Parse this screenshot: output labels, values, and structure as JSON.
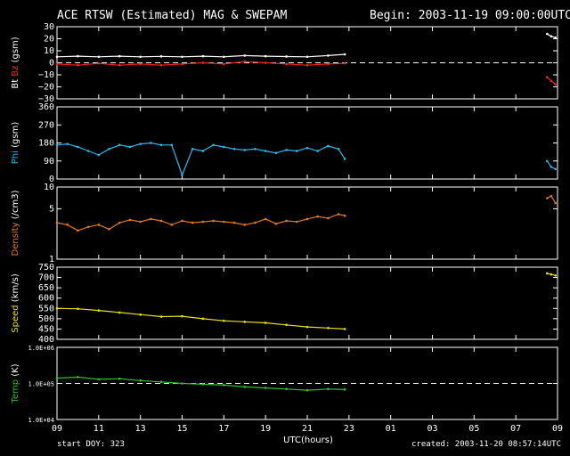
{
  "header": {
    "title": "ACE RTSW (Estimated) MAG & SWEPAM",
    "begin": "Begin: 2003-11-19 09:00:00UTC"
  },
  "footer": {
    "start_doy": "start DOY: 323",
    "created": "created: 2003-11-20 08:57:14UTC"
  },
  "colors": {
    "bt": "#ffffff",
    "bz": "#ff2020",
    "phi": "#30b8e8",
    "density": "#e07820",
    "speed": "#e8e020",
    "temp": "#30c030",
    "axes": "#ffffff"
  },
  "chart_data": [
    {
      "type": "scatter",
      "ylabel": [
        {
          "text": "Bt",
          "color": "#ffffff"
        },
        {
          "text": "Bz",
          "color": "#ff2020"
        },
        {
          "text": "(gsm)",
          "color": "#ffffff"
        }
      ],
      "ylim": [
        -30,
        30
      ],
      "yticks": [
        "30",
        "20",
        "10",
        "0",
        "−10",
        "−20",
        "−30"
      ],
      "ytick_values": [
        30,
        20,
        10,
        0,
        -10,
        -20,
        -30
      ],
      "reference_line": 0,
      "series": [
        {
          "key": "bt",
          "x": [
            0,
            1,
            2,
            3,
            4,
            5,
            6,
            7,
            8,
            9,
            10,
            11,
            12,
            13,
            13.8,
            23.5,
            23.7,
            23.9
          ],
          "values": [
            5,
            5.5,
            5,
            5.5,
            5,
            5.3,
            5,
            5.5,
            5,
            6,
            5.5,
            5.2,
            5,
            6,
            7,
            24,
            22,
            21
          ]
        },
        {
          "key": "bz",
          "x": [
            0,
            1,
            2,
            3,
            4,
            5,
            6,
            7,
            8,
            9,
            10,
            11,
            12,
            13,
            13.8,
            23.5,
            23.7,
            23.9
          ],
          "values": [
            -1,
            -2,
            -0.5,
            -2,
            -1,
            -2,
            -1,
            0,
            -1,
            1,
            0,
            -1,
            -2,
            -1,
            -0.5,
            -12,
            -15,
            -18
          ]
        }
      ]
    },
    {
      "type": "scatter",
      "ylabel": [
        {
          "text": "Phi",
          "color": "#30b8e8"
        },
        {
          "text": "(gsm)",
          "color": "#ffffff"
        }
      ],
      "ylim": [
        0,
        360
      ],
      "yticks": [
        "360",
        "270",
        "180",
        "90",
        "0"
      ],
      "ytick_values": [
        360,
        270,
        180,
        90,
        0
      ],
      "series": [
        {
          "key": "phi",
          "x": [
            0,
            0.5,
            1,
            1.5,
            2,
            2.5,
            3,
            3.5,
            4,
            4.5,
            5,
            5.5,
            6,
            6.5,
            7,
            7.5,
            8,
            8.5,
            9,
            9.5,
            10,
            10.5,
            11,
            11.5,
            12,
            12.5,
            13,
            13.5,
            13.8,
            23.5,
            23.7,
            23.9
          ],
          "values": [
            170,
            175,
            160,
            140,
            120,
            150,
            170,
            160,
            175,
            180,
            170,
            170,
            20,
            150,
            140,
            170,
            160,
            150,
            145,
            150,
            140,
            130,
            145,
            140,
            155,
            140,
            165,
            150,
            100,
            90,
            60,
            50
          ]
        }
      ]
    },
    {
      "type": "scatter",
      "ylabel": [
        {
          "text": "Density",
          "color": "#e07820"
        },
        {
          "text": "(/cm3)",
          "color": "#ffffff"
        }
      ],
      "scale": "log",
      "ylim": [
        1,
        10
      ],
      "yticks": [
        "10",
        "5",
        "1"
      ],
      "ytick_values": [
        10,
        5,
        1
      ],
      "series": [
        {
          "key": "density",
          "x": [
            0,
            0.5,
            1,
            1.5,
            2,
            2.5,
            3,
            3.5,
            4,
            4.5,
            5,
            5.5,
            6,
            6.5,
            7,
            7.5,
            8,
            8.5,
            9,
            9.5,
            10,
            10.5,
            11,
            11.5,
            12,
            12.5,
            13,
            13.5,
            13.8,
            23.5,
            23.7,
            23.9
          ],
          "values": [
            3.2,
            3.0,
            2.5,
            2.8,
            3.0,
            2.6,
            3.2,
            3.5,
            3.3,
            3.6,
            3.4,
            3.0,
            3.4,
            3.2,
            3.3,
            3.4,
            3.3,
            3.2,
            3.0,
            3.2,
            3.6,
            3.1,
            3.4,
            3.3,
            3.6,
            3.9,
            3.7,
            4.2,
            4.0,
            7.0,
            7.5,
            6.0
          ]
        }
      ]
    },
    {
      "type": "line",
      "ylabel": [
        {
          "text": "Speed",
          "color": "#e8e020"
        },
        {
          "text": "(km/s)",
          "color": "#ffffff"
        }
      ],
      "ylim": [
        400,
        750
      ],
      "yticks": [
        "750",
        "700",
        "650",
        "600",
        "550",
        "500",
        "450",
        "400"
      ],
      "ytick_values": [
        750,
        700,
        650,
        600,
        550,
        500,
        450,
        400
      ],
      "series": [
        {
          "key": "speed",
          "x": [
            0,
            1,
            2,
            3,
            4,
            5,
            6,
            7,
            8,
            9,
            10,
            11,
            12,
            13,
            13.8,
            23.5,
            23.7,
            23.9
          ],
          "values": [
            550,
            548,
            540,
            530,
            520,
            510,
            512,
            500,
            490,
            485,
            480,
            470,
            460,
            455,
            450,
            720,
            715,
            710
          ]
        }
      ]
    },
    {
      "type": "scatter",
      "ylabel": [
        {
          "text": "Temp",
          "color": "#30c030"
        },
        {
          "text": "(K)",
          "color": "#ffffff"
        }
      ],
      "scale": "log",
      "ylim": [
        10000,
        1000000
      ],
      "yticks": [
        "1.0E+06",
        "1.0E+05",
        "1.0E+04"
      ],
      "ytick_values": [
        1000000,
        100000,
        10000
      ],
      "reference_line": 100000,
      "series": [
        {
          "key": "temp",
          "x": [
            0,
            1,
            2,
            3,
            4,
            5,
            6,
            7,
            8,
            9,
            10,
            11,
            12,
            13,
            13.8
          ],
          "values": [
            140000,
            150000,
            130000,
            135000,
            120000,
            110000,
            100000,
            95000,
            90000,
            80000,
            75000,
            70000,
            65000,
            70000,
            68000
          ]
        }
      ]
    }
  ],
  "xaxis": {
    "label": "UTC(hours)",
    "ticks": [
      "09",
      "11",
      "13",
      "15",
      "17",
      "19",
      "21",
      "23",
      "01",
      "03",
      "05",
      "07",
      "09"
    ],
    "tick_hours": [
      0,
      2,
      4,
      6,
      8,
      10,
      12,
      14,
      16,
      18,
      20,
      22,
      24
    ]
  }
}
